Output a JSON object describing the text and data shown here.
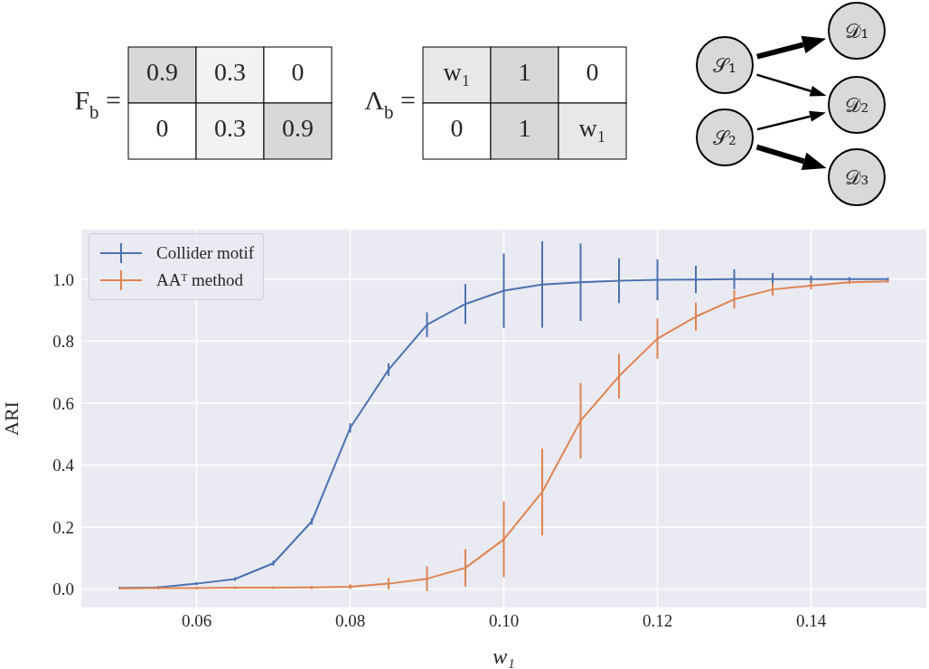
{
  "chart_data": [
    {
      "type": "heatmap",
      "title": "F$_{b}$ =",
      "categories": [
        null,
        null,
        null
      ],
      "y_categories": [
        null,
        null
      ],
      "cells": [
        [
          0.9,
          0.3,
          0
        ],
        [
          0,
          0.3,
          0.9
        ]
      ],
      "cell_labels": [
        [
          "0.9",
          "0.3",
          "0"
        ],
        [
          "0",
          "0.3",
          "0.9"
        ]
      ]
    },
    {
      "type": "other",
      "title": "Λ$_{b}$ =",
      "annotations": [
        "w₁",
        "1",
        "0",
        "0",
        "1",
        "w₁"
      ]
    },
    {
      "type": "other",
      "annotations": [
        "𝒮₁",
        "𝒮₂",
        "𝒟₁",
        "𝒟₂",
        "𝒟₃"
      ]
    },
    {
      "type": "line",
      "xlabel": "w₁",
      "ylabel": "ARI",
      "xlim": [
        0.045,
        0.155
      ],
      "ylim": [
        -0.06,
        1.16
      ],
      "xticks": [
        0.06,
        0.08,
        {
          "value": 0.1,
          "label": "0.10"
        },
        0.12,
        0.14
      ],
      "yticks": [
        {
          "value": 0,
          "label": "0.0"
        },
        0.2,
        0.4,
        0.6,
        0.8,
        {
          "value": 1,
          "label": "1.0"
        }
      ],
      "grid": true,
      "legend": "top left",
      "x": [
        0.05,
        0.055,
        0.06,
        0.065,
        0.07,
        0.075,
        0.08,
        0.085,
        0.09,
        0.095,
        0.1,
        0.105,
        0.11,
        0.115,
        0.12,
        0.125,
        0.13,
        0.135,
        0.14,
        0.145,
        0.15
      ],
      "series": [
        {
          "name": "Collider motif",
          "color": "#4c72b0",
          "values": [
            0.003,
            0.005,
            0.017,
            0.032,
            0.083,
            0.218,
            0.52,
            0.708,
            0.853,
            0.92,
            0.963,
            0.983,
            0.99,
            0.995,
            0.998,
            0.999,
            1.0,
            1.0,
            1.0,
            1.0,
            1.0
          ],
          "errors": [
            0.004,
            0.004,
            0.005,
            0.006,
            0.008,
            0.01,
            0.015,
            0.02,
            0.04,
            0.064,
            0.12,
            0.14,
            0.125,
            0.072,
            0.066,
            0.044,
            0.032,
            0.02,
            0.012,
            0.007,
            0.005
          ]
        },
        {
          "name": "AAᵀ method",
          "color": "#dd8452",
          "values": [
            0.002,
            0.003,
            0.003,
            0.004,
            0.004,
            0.005,
            0.007,
            0.017,
            0.033,
            0.068,
            0.16,
            0.313,
            0.543,
            0.687,
            0.808,
            0.879,
            0.935,
            0.967,
            0.979,
            0.99,
            0.993
          ],
          "errors": [
            null,
            0.004,
            0.004,
            0.004,
            0.004,
            0.005,
            0.008,
            0.018,
            0.04,
            0.06,
            0.122,
            0.14,
            0.122,
            0.072,
            0.065,
            0.045,
            0.03,
            0.02,
            0.012,
            0.006,
            0.004
          ]
        }
      ]
    }
  ]
}
